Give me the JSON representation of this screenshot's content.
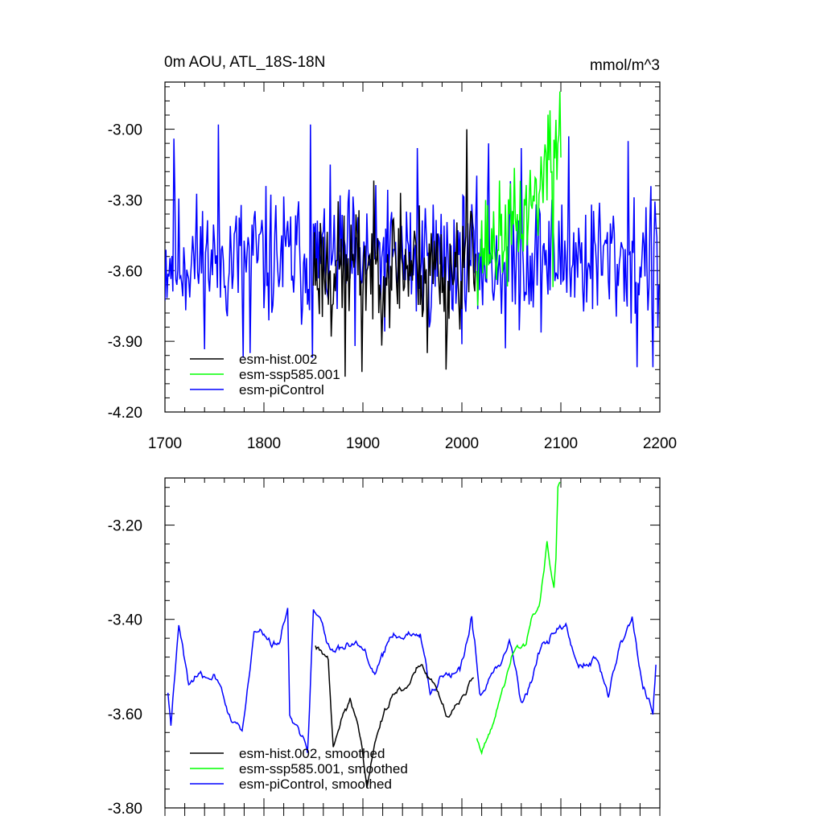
{
  "figure": {
    "title_left": "0m AOU, ATL_18S-18N",
    "title_right": "mmol/m^3"
  },
  "chart_data": [
    {
      "type": "line",
      "panel": "top",
      "title": "0m AOU, ATL_18S-18N",
      "units": "mmol/m^3",
      "xlim": [
        1700,
        2200
      ],
      "ylim": [
        -4.2,
        -2.8
      ],
      "xticks": [
        1700,
        1800,
        1900,
        2000,
        2100,
        2200
      ],
      "xtick_labels": [
        "1700",
        "1800",
        "1900",
        "2000",
        "2100",
        "2200"
      ],
      "yticks": [
        -4.2,
        -3.9,
        -3.6,
        -3.3,
        -3.0
      ],
      "ytick_labels": [
        "-4.20",
        "-3.90",
        "-3.60",
        "-3.30",
        "-3.00"
      ],
      "legend": [
        "esm-hist.002",
        "esm-ssp585.001",
        "esm-piControl"
      ],
      "legend_position": "bottom-left",
      "series": [
        {
          "name": "esm-piControl",
          "color": "#0000ff",
          "x_start": 1700,
          "step": 1,
          "x_end": 2199,
          "mean": -3.55,
          "amplitude": 0.14,
          "seed": 11,
          "anchors": [
            [
              1709,
              -3.04
            ],
            [
              1754,
              -2.98
            ],
            [
              1779,
              -3.97
            ],
            [
              1786,
              -3.95
            ],
            [
              1847,
              -2.98
            ],
            [
              1849,
              -3.97
            ],
            [
              1892,
              -3.92
            ],
            [
              1955,
              -3.08
            ],
            [
              2027,
              -3.06
            ],
            [
              2044,
              -3.93
            ],
            [
              2060,
              -3.08
            ],
            [
              2108,
              -3.03
            ],
            [
              2168,
              -3.05
            ],
            [
              2177,
              -4.01
            ],
            [
              2193,
              -4.01
            ],
            [
              2198,
              -3.84
            ]
          ]
        },
        {
          "name": "esm-hist.002",
          "color": "#000000",
          "x_start": 1850,
          "step": 1,
          "x_end": 2014,
          "mean": -3.58,
          "amplitude": 0.13,
          "seed": 23,
          "anchors": [
            [
              1868,
              -3.88
            ],
            [
              1882,
              -4.05
            ],
            [
              1899,
              -4.03
            ],
            [
              1938,
              -3.27
            ],
            [
              1965,
              -3.95
            ],
            [
              1984,
              -4.02
            ],
            [
              2005,
              -3.0
            ]
          ]
        },
        {
          "name": "esm-ssp585.001",
          "color": "#00ff00",
          "x_start": 2015,
          "step": 1,
          "x_end": 2100,
          "mean": -3.5,
          "amplitude": 0.11,
          "seed": 37,
          "trend_end": -3.05,
          "anchors": [
            [
              2089,
              -2.92
            ],
            [
              2092,
              -3.67
            ],
            [
              2095,
              -2.96
            ],
            [
              2099,
              -2.84
            ],
            [
              2100,
              -3.12
            ]
          ]
        }
      ]
    },
    {
      "type": "line",
      "panel": "bottom",
      "xlim": [
        1700,
        2200
      ],
      "ylim": [
        -3.8,
        -3.1
      ],
      "xticks": [
        1700,
        1800,
        1900,
        2000,
        2100,
        2200
      ],
      "yticks": [
        -3.8,
        -3.6,
        -3.4,
        -3.2
      ],
      "ytick_labels": [
        "-3.80",
        "-3.60",
        "-3.40",
        "-3.20"
      ],
      "legend": [
        "esm-hist.002, smoothed",
        "esm-ssp585.001, smoothed",
        "esm-piControl, smoothed"
      ],
      "legend_position": "bottom-left",
      "series": [
        {
          "name": "esm-piControl, smoothed",
          "color": "#0000ff",
          "x_start": 1703,
          "step": 1,
          "x_end": 2196,
          "mean": -3.53,
          "amplitude": 0.05,
          "seed": 11,
          "smooth": 5,
          "anchors": [
            [
              1703,
              -3.54
            ],
            [
              1706,
              -3.61
            ],
            [
              1714,
              -3.41
            ],
            [
              1724,
              -3.52
            ],
            [
              1750,
              -3.52
            ],
            [
              1778,
              -3.65
            ],
            [
              1790,
              -3.44
            ],
            [
              1815,
              -3.45
            ],
            [
              1824,
              -3.39
            ],
            [
              1826,
              -3.62
            ],
            [
              1844,
              -3.66
            ],
            [
              1850,
              -3.37
            ],
            [
              1867,
              -3.47
            ],
            [
              1902,
              -3.47
            ],
            [
              1912,
              -3.53
            ],
            [
              1925,
              -3.45
            ],
            [
              1958,
              -3.43
            ],
            [
              1968,
              -3.55
            ],
            [
              2000,
              -3.49
            ],
            [
              2010,
              -3.4
            ],
            [
              2018,
              -3.57
            ],
            [
              2030,
              -3.51
            ],
            [
              2048,
              -3.45
            ],
            [
              2060,
              -3.57
            ],
            [
              2080,
              -3.46
            ],
            [
              2105,
              -3.41
            ],
            [
              2118,
              -3.5
            ],
            [
              2135,
              -3.48
            ],
            [
              2148,
              -3.57
            ],
            [
              2160,
              -3.45
            ],
            [
              2172,
              -3.39
            ],
            [
              2182,
              -3.53
            ],
            [
              2193,
              -3.6
            ],
            [
              2196,
              -3.49
            ]
          ]
        },
        {
          "name": "esm-hist.002, smoothed",
          "color": "#000000",
          "x_start": 1852,
          "step": 1,
          "x_end": 2012,
          "mean": -3.55,
          "amplitude": 0.04,
          "seed": 23,
          "smooth": 5,
          "anchors": [
            [
              1852,
              -3.45
            ],
            [
              1865,
              -3.48
            ],
            [
              1870,
              -3.66
            ],
            [
              1887,
              -3.57
            ],
            [
              1898,
              -3.66
            ],
            [
              1904,
              -3.75
            ],
            [
              1922,
              -3.57
            ],
            [
              1945,
              -3.54
            ],
            [
              1960,
              -3.49
            ],
            [
              1986,
              -3.6
            ],
            [
              2000,
              -3.56
            ],
            [
              2012,
              -3.54
            ]
          ]
        },
        {
          "name": "esm-ssp585.001, smoothed",
          "color": "#00ff00",
          "x_start": 2015,
          "step": 1,
          "x_end": 2099,
          "mean": -3.55,
          "amplitude": 0.02,
          "seed": 37,
          "smooth": 3,
          "anchors": [
            [
              2015,
              -3.64
            ],
            [
              2020,
              -3.68
            ],
            [
              2030,
              -3.63
            ],
            [
              2045,
              -3.52
            ],
            [
              2055,
              -3.46
            ],
            [
              2065,
              -3.45
            ],
            [
              2070,
              -3.4
            ],
            [
              2078,
              -3.37
            ],
            [
              2083,
              -3.3
            ],
            [
              2086,
              -3.24
            ],
            [
              2090,
              -3.3
            ],
            [
              2093,
              -3.33
            ],
            [
              2095,
              -3.27
            ],
            [
              2097,
              -3.12
            ],
            [
              2099,
              -3.11
            ]
          ]
        }
      ]
    }
  ]
}
